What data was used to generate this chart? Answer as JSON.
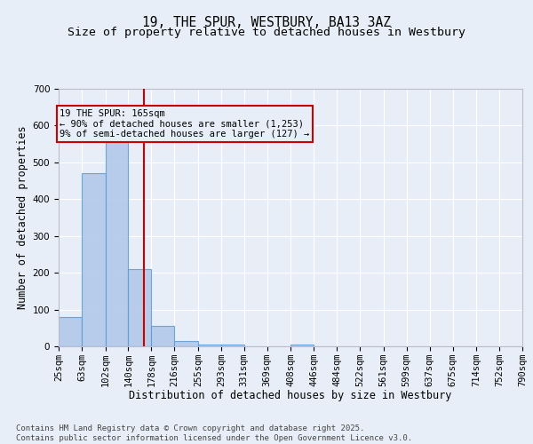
{
  "title": "19, THE SPUR, WESTBURY, BA13 3AZ",
  "subtitle": "Size of property relative to detached houses in Westbury",
  "xlabel": "Distribution of detached houses by size in Westbury",
  "ylabel": "Number of detached properties",
  "bar_values": [
    80,
    470,
    560,
    210,
    55,
    15,
    5,
    5,
    0,
    0,
    5,
    0,
    0,
    0,
    0,
    0,
    0,
    0,
    0,
    0
  ],
  "bin_edges": [
    25,
    63,
    102,
    140,
    178,
    216,
    255,
    293,
    331,
    369,
    408,
    446,
    484,
    522,
    561,
    599,
    637,
    675,
    714,
    752,
    790
  ],
  "bar_color": "#aec6e8",
  "bar_edge_color": "#5b9bd5",
  "bar_alpha": 0.85,
  "vline_x": 165,
  "vline_color": "#cc0000",
  "annotation_text": "19 THE SPUR: 165sqm\n← 90% of detached houses are smaller (1,253)\n9% of semi-detached houses are larger (127) →",
  "annotation_box_color": "#cc0000",
  "ylim": [
    0,
    700
  ],
  "yticks": [
    0,
    100,
    200,
    300,
    400,
    500,
    600,
    700
  ],
  "background_color": "#e8eef8",
  "grid_color": "#ffffff",
  "footnote": "Contains HM Land Registry data © Crown copyright and database right 2025.\nContains public sector information licensed under the Open Government Licence v3.0.",
  "title_fontsize": 10.5,
  "subtitle_fontsize": 9.5,
  "label_fontsize": 8.5,
  "tick_fontsize": 7.5,
  "annotation_fontsize": 7.5,
  "footnote_fontsize": 6.5
}
